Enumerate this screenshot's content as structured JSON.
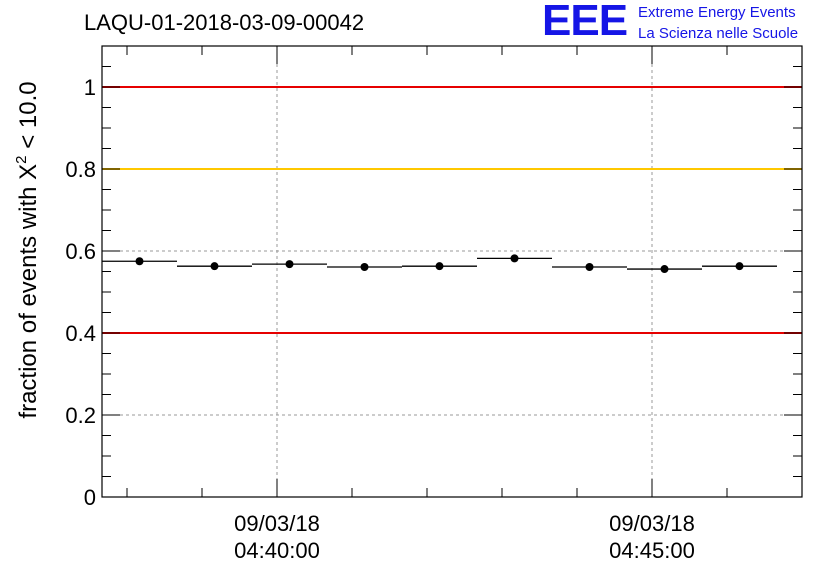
{
  "header": {
    "run_title": "LAQU-01-2018-03-09-00042",
    "logo": {
      "letters": "EEE",
      "line1": "Extreme Energy Events",
      "line2": "La Scienza nelle Scuole",
      "color": "#1515e6"
    }
  },
  "chart_data": {
    "type": "scatter",
    "title": "LAQU-01-2018-03-09-00042",
    "ylabel_prefix": "fraction of events with ",
    "ylabel_symbol": "X",
    "ylabel_exponent": "2",
    "ylabel_suffix": " < 10.0",
    "xlabel": "",
    "ylim": [
      0,
      1.1
    ],
    "yticks": [
      0,
      0.2,
      0.4,
      0.6,
      0.8,
      1
    ],
    "ytick_labels": [
      "0",
      "0.2",
      "0.4",
      "0.6",
      "0.8",
      "1"
    ],
    "xlim": [
      "2018-03-09 04:37:40",
      "2018-03-09 04:47:00"
    ],
    "xticks": [
      {
        "x": "2018-03-09 04:40:00",
        "date": "09/03/18",
        "time": "04:40:00"
      },
      {
        "x": "2018-03-09 04:45:00",
        "date": "09/03/18",
        "time": "04:45:00"
      }
    ],
    "grid": true,
    "reference_lines": [
      {
        "y": 1.0,
        "color": "#e60000"
      },
      {
        "y": 0.8,
        "color": "#ffc800"
      },
      {
        "y": 0.4,
        "color": "#e60000"
      }
    ],
    "points": [
      {
        "x": "2018-03-09 04:38:10",
        "x_start": "2018-03-09 04:37:40",
        "x_end": "2018-03-09 04:38:40",
        "y": 0.575
      },
      {
        "x": "2018-03-09 04:39:10",
        "x_start": "2018-03-09 04:38:40",
        "x_end": "2018-03-09 04:39:40",
        "y": 0.563
      },
      {
        "x": "2018-03-09 04:40:10",
        "x_start": "2018-03-09 04:39:40",
        "x_end": "2018-03-09 04:40:40",
        "y": 0.568
      },
      {
        "x": "2018-03-09 04:41:10",
        "x_start": "2018-03-09 04:40:40",
        "x_end": "2018-03-09 04:41:40",
        "y": 0.561
      },
      {
        "x": "2018-03-09 04:42:10",
        "x_start": "2018-03-09 04:41:40",
        "x_end": "2018-03-09 04:42:40",
        "y": 0.563
      },
      {
        "x": "2018-03-09 04:43:10",
        "x_start": "2018-03-09 04:42:40",
        "x_end": "2018-03-09 04:43:40",
        "y": 0.582
      },
      {
        "x": "2018-03-09 04:44:10",
        "x_start": "2018-03-09 04:43:40",
        "x_end": "2018-03-09 04:44:40",
        "y": 0.561
      },
      {
        "x": "2018-03-09 04:45:10",
        "x_start": "2018-03-09 04:44:40",
        "x_end": "2018-03-09 04:45:40",
        "y": 0.556
      },
      {
        "x": "2018-03-09 04:46:10",
        "x_start": "2018-03-09 04:45:40",
        "x_end": "2018-03-09 04:46:40",
        "y": 0.563
      }
    ],
    "marker_color": "#000000",
    "grid_color": "#999999"
  }
}
